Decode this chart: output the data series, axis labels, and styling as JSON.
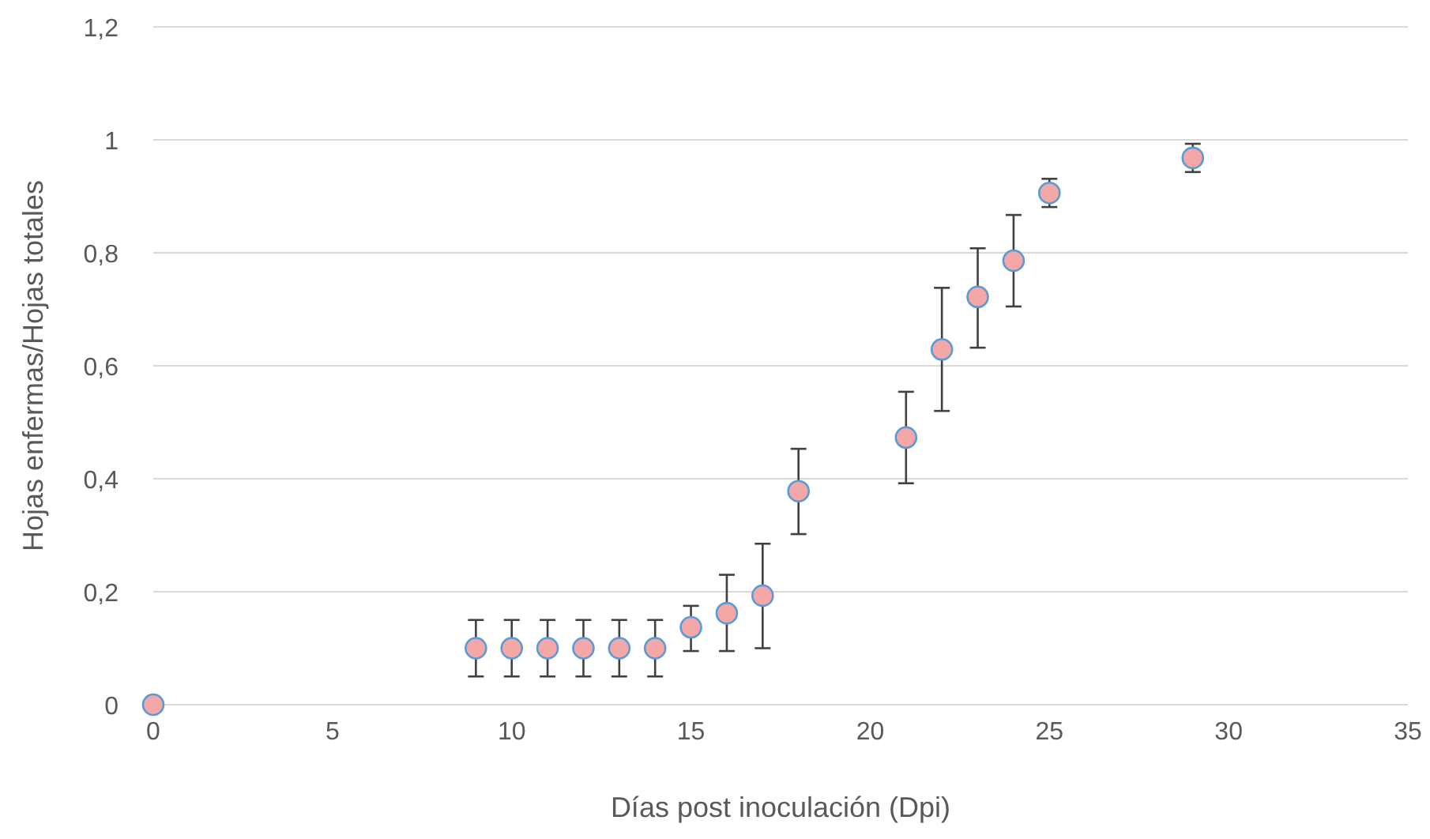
{
  "chart_data": {
    "type": "scatter",
    "xlabel": "Días post inoculación (Dpi)",
    "ylabel": "Hojas enfermas/Hojas totales",
    "x": [
      0,
      9,
      10,
      11,
      12,
      13,
      14,
      15,
      16,
      17,
      18,
      21,
      22,
      23,
      24,
      25,
      29
    ],
    "series": [
      {
        "color": "#f4a7a7",
        "values": [
          0,
          0.1,
          0.1,
          0.1,
          0.1,
          0.1,
          0.1,
          0.137,
          0.162,
          0.193,
          0.378,
          0.473,
          0.629,
          0.722,
          0.786,
          0.906,
          0.968
        ],
        "errors": [
          null,
          [
            0.05,
            0.15
          ],
          [
            0.05,
            0.15
          ],
          [
            0.05,
            0.15
          ],
          [
            0.05,
            0.15
          ],
          [
            0.05,
            0.15
          ],
          [
            0.05,
            0.15
          ],
          [
            0.095,
            0.175
          ],
          [
            0.095,
            0.23
          ],
          [
            0.1,
            0.285
          ],
          [
            0.302,
            0.453
          ],
          [
            0.392,
            0.554
          ],
          [
            0.52,
            0.738
          ],
          [
            0.632,
            0.808
          ],
          [
            0.705,
            0.867
          ],
          [
            0.881,
            0.931
          ],
          [
            0.943,
            0.993
          ]
        ]
      }
    ],
    "xlim": [
      0,
      35
    ],
    "xticks": [
      0,
      5,
      10,
      15,
      20,
      25,
      30,
      35
    ],
    "ylim": [
      0,
      1.2
    ],
    "yticks": [
      0,
      {
        "value": 0.2,
        "label": "0,2"
      },
      {
        "value": 0.4,
        "label": "0,4"
      },
      {
        "value": 0.6,
        "label": "0,6"
      },
      {
        "value": 0.8,
        "label": "0,8"
      },
      1,
      {
        "value": 1.2,
        "label": "1,2"
      }
    ],
    "grid": "y",
    "marker": "circle"
  }
}
